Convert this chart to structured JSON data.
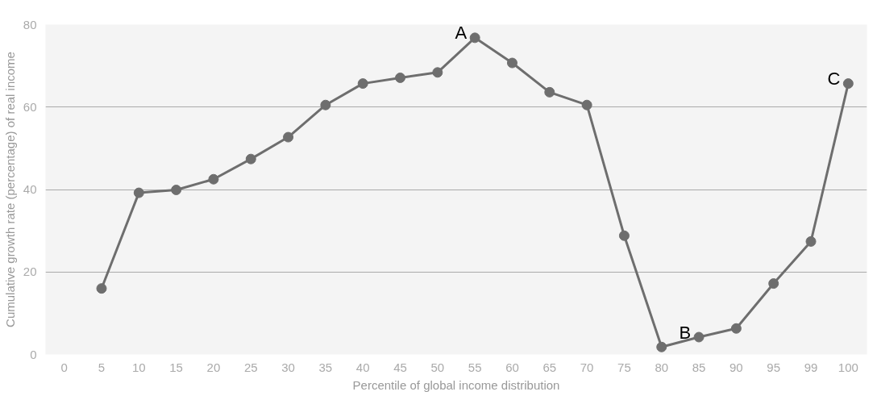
{
  "chart_data": {
    "type": "line",
    "xlabel": "Percentile of global income distribution",
    "ylabel": "Cumulative growth rate (percentage) of real income",
    "categories": [
      "0",
      "5",
      "10",
      "15",
      "20",
      "25",
      "30",
      "35",
      "40",
      "45",
      "50",
      "55",
      "60",
      "65",
      "70",
      "75",
      "80",
      "85",
      "90",
      "95",
      "99",
      "100"
    ],
    "series": [
      {
        "color": "#6e6e6e",
        "values": [
          null,
          16,
          39.2,
          39.9,
          42.5,
          47.4,
          52.7,
          60.5,
          65.7,
          67.1,
          68.4,
          76.8,
          70.7,
          63.6,
          60.5,
          28.8,
          1.8,
          4.2,
          6.3,
          17.2,
          27.4,
          65.7
        ]
      }
    ],
    "ylim": [
      0,
      80
    ],
    "yticks": [
      0,
      20,
      40,
      60,
      80
    ],
    "grid": "y",
    "marker": "circle",
    "line_style": "solid",
    "annotations": [
      {
        "text": "A",
        "x": "55",
        "y": 76.8
      },
      {
        "text": "B",
        "x": "85",
        "y": 4.2
      },
      {
        "text": "C",
        "x": "100",
        "y": 65.7
      }
    ]
  }
}
